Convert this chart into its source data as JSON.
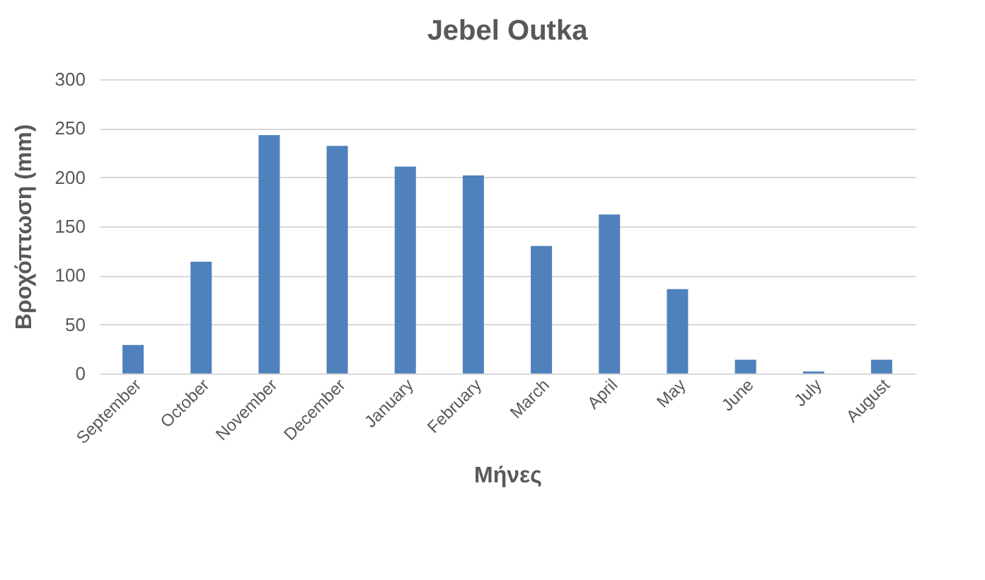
{
  "chart_data": {
    "type": "bar",
    "title": "Jebel Outka",
    "xlabel": "Μήνες",
    "ylabel": "Βροχόπτωση (mm)",
    "categories": [
      "September",
      "October",
      "November",
      "December",
      "January",
      "February",
      "March",
      "April",
      "May",
      "June",
      "July",
      "August"
    ],
    "values": [
      29,
      114,
      243,
      232,
      211,
      202,
      130,
      162,
      86,
      14,
      2,
      14
    ],
    "color": "#4f81bd",
    "ylim": [
      0,
      300
    ],
    "yticks": [
      0,
      50,
      100,
      150,
      200,
      250,
      300
    ],
    "grid": "y"
  }
}
